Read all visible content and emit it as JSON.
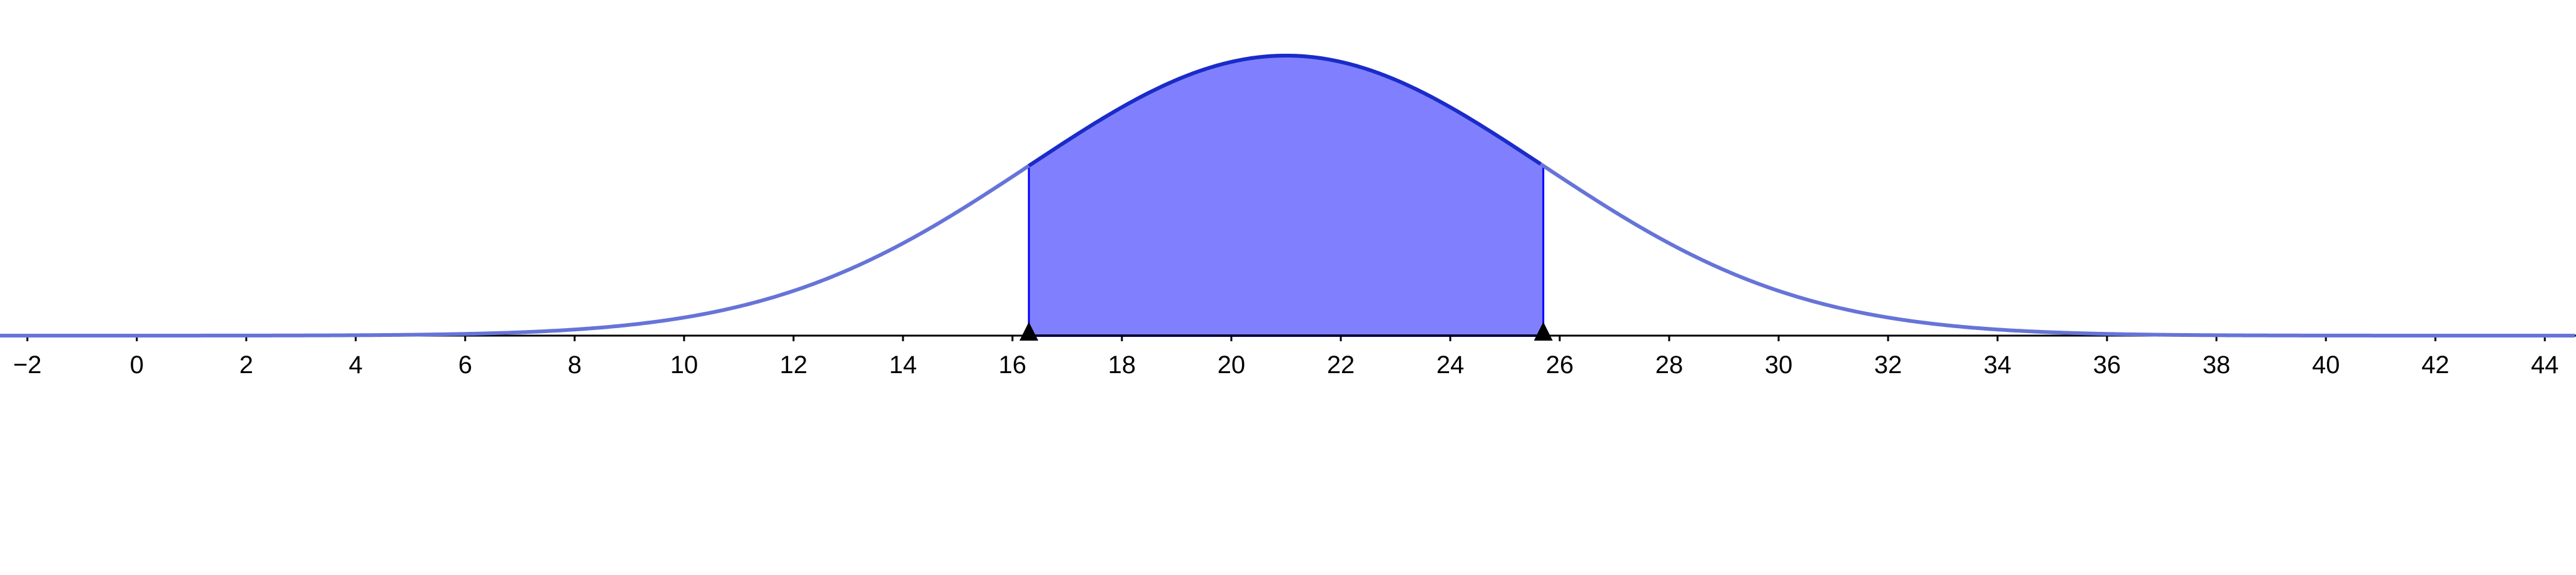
{
  "chart_data": {
    "type": "area",
    "distribution": "normal",
    "mean": 21,
    "sd": 4.7,
    "shaded_interval": [
      16.3,
      25.7
    ],
    "xlim": [
      -2.5,
      44.57
    ],
    "x_ticks": [
      -2,
      0,
      2,
      4,
      6,
      8,
      10,
      12,
      14,
      16,
      18,
      20,
      22,
      24,
      26,
      28,
      30,
      32,
      34,
      36,
      38,
      40,
      42,
      44
    ],
    "x_tick_labels": [
      "−2",
      "0",
      "2",
      "4",
      "6",
      "8",
      "10",
      "12",
      "14",
      "16",
      "18",
      "20",
      "22",
      "24",
      "26",
      "28",
      "30",
      "32",
      "34",
      "36",
      "38",
      "40",
      "42",
      "44"
    ],
    "grid": false,
    "colors": {
      "curve": "#6674d8",
      "curve_shaded": "#1a2bc8",
      "fill": "#8080ff",
      "bounds": "#0000ff",
      "axis": "#000000",
      "markers": "#000000"
    }
  }
}
